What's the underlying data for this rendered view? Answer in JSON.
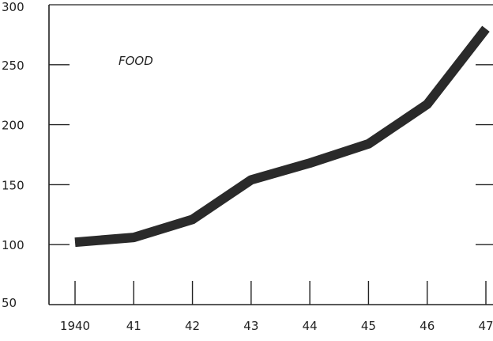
{
  "chart_data": {
    "type": "line",
    "title": "",
    "xlabel": "",
    "ylabel": "",
    "categories": [
      "1940",
      "41",
      "42",
      "43",
      "44",
      "45",
      "46",
      "47"
    ],
    "x": [
      1940,
      1941,
      1942,
      1943,
      1944,
      1945,
      1946,
      1947
    ],
    "series": [
      {
        "name": "FOOD",
        "values": [
          102,
          106,
          121,
          154,
          168,
          184,
          217,
          280
        ]
      }
    ],
    "ylim": [
      50,
      300
    ],
    "yticks": [
      50,
      100,
      150,
      200,
      250,
      300
    ],
    "ytick_labels": [
      "50",
      "100",
      "150",
      "200",
      "250",
      "300"
    ],
    "grid": false,
    "legend": "none",
    "line_color": "#2a2a2a"
  }
}
